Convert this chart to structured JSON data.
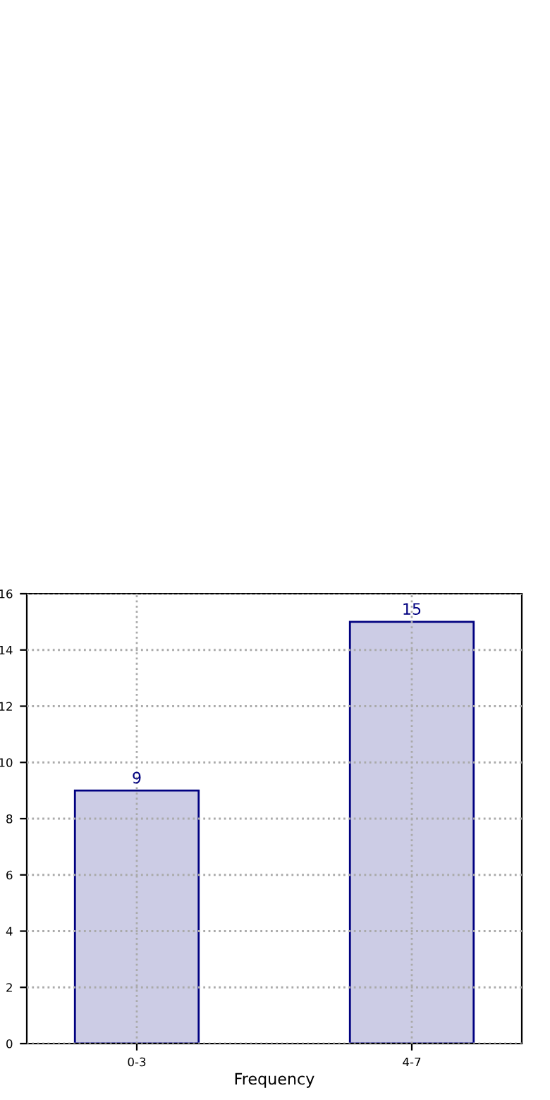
{
  "chart_data": {
    "type": "bar",
    "xlabel": "Frequency",
    "categories": [
      "0-3",
      "4-7"
    ],
    "series": [
      {
        "color": "#ccccE5",
        "values": [
          9,
          15
        ]
      }
    ],
    "ylim": [
      0,
      16
    ],
    "yticks": [
      0,
      2,
      4,
      6,
      8,
      10,
      12,
      14,
      16
    ],
    "grid": true,
    "data_labels": true
  }
}
